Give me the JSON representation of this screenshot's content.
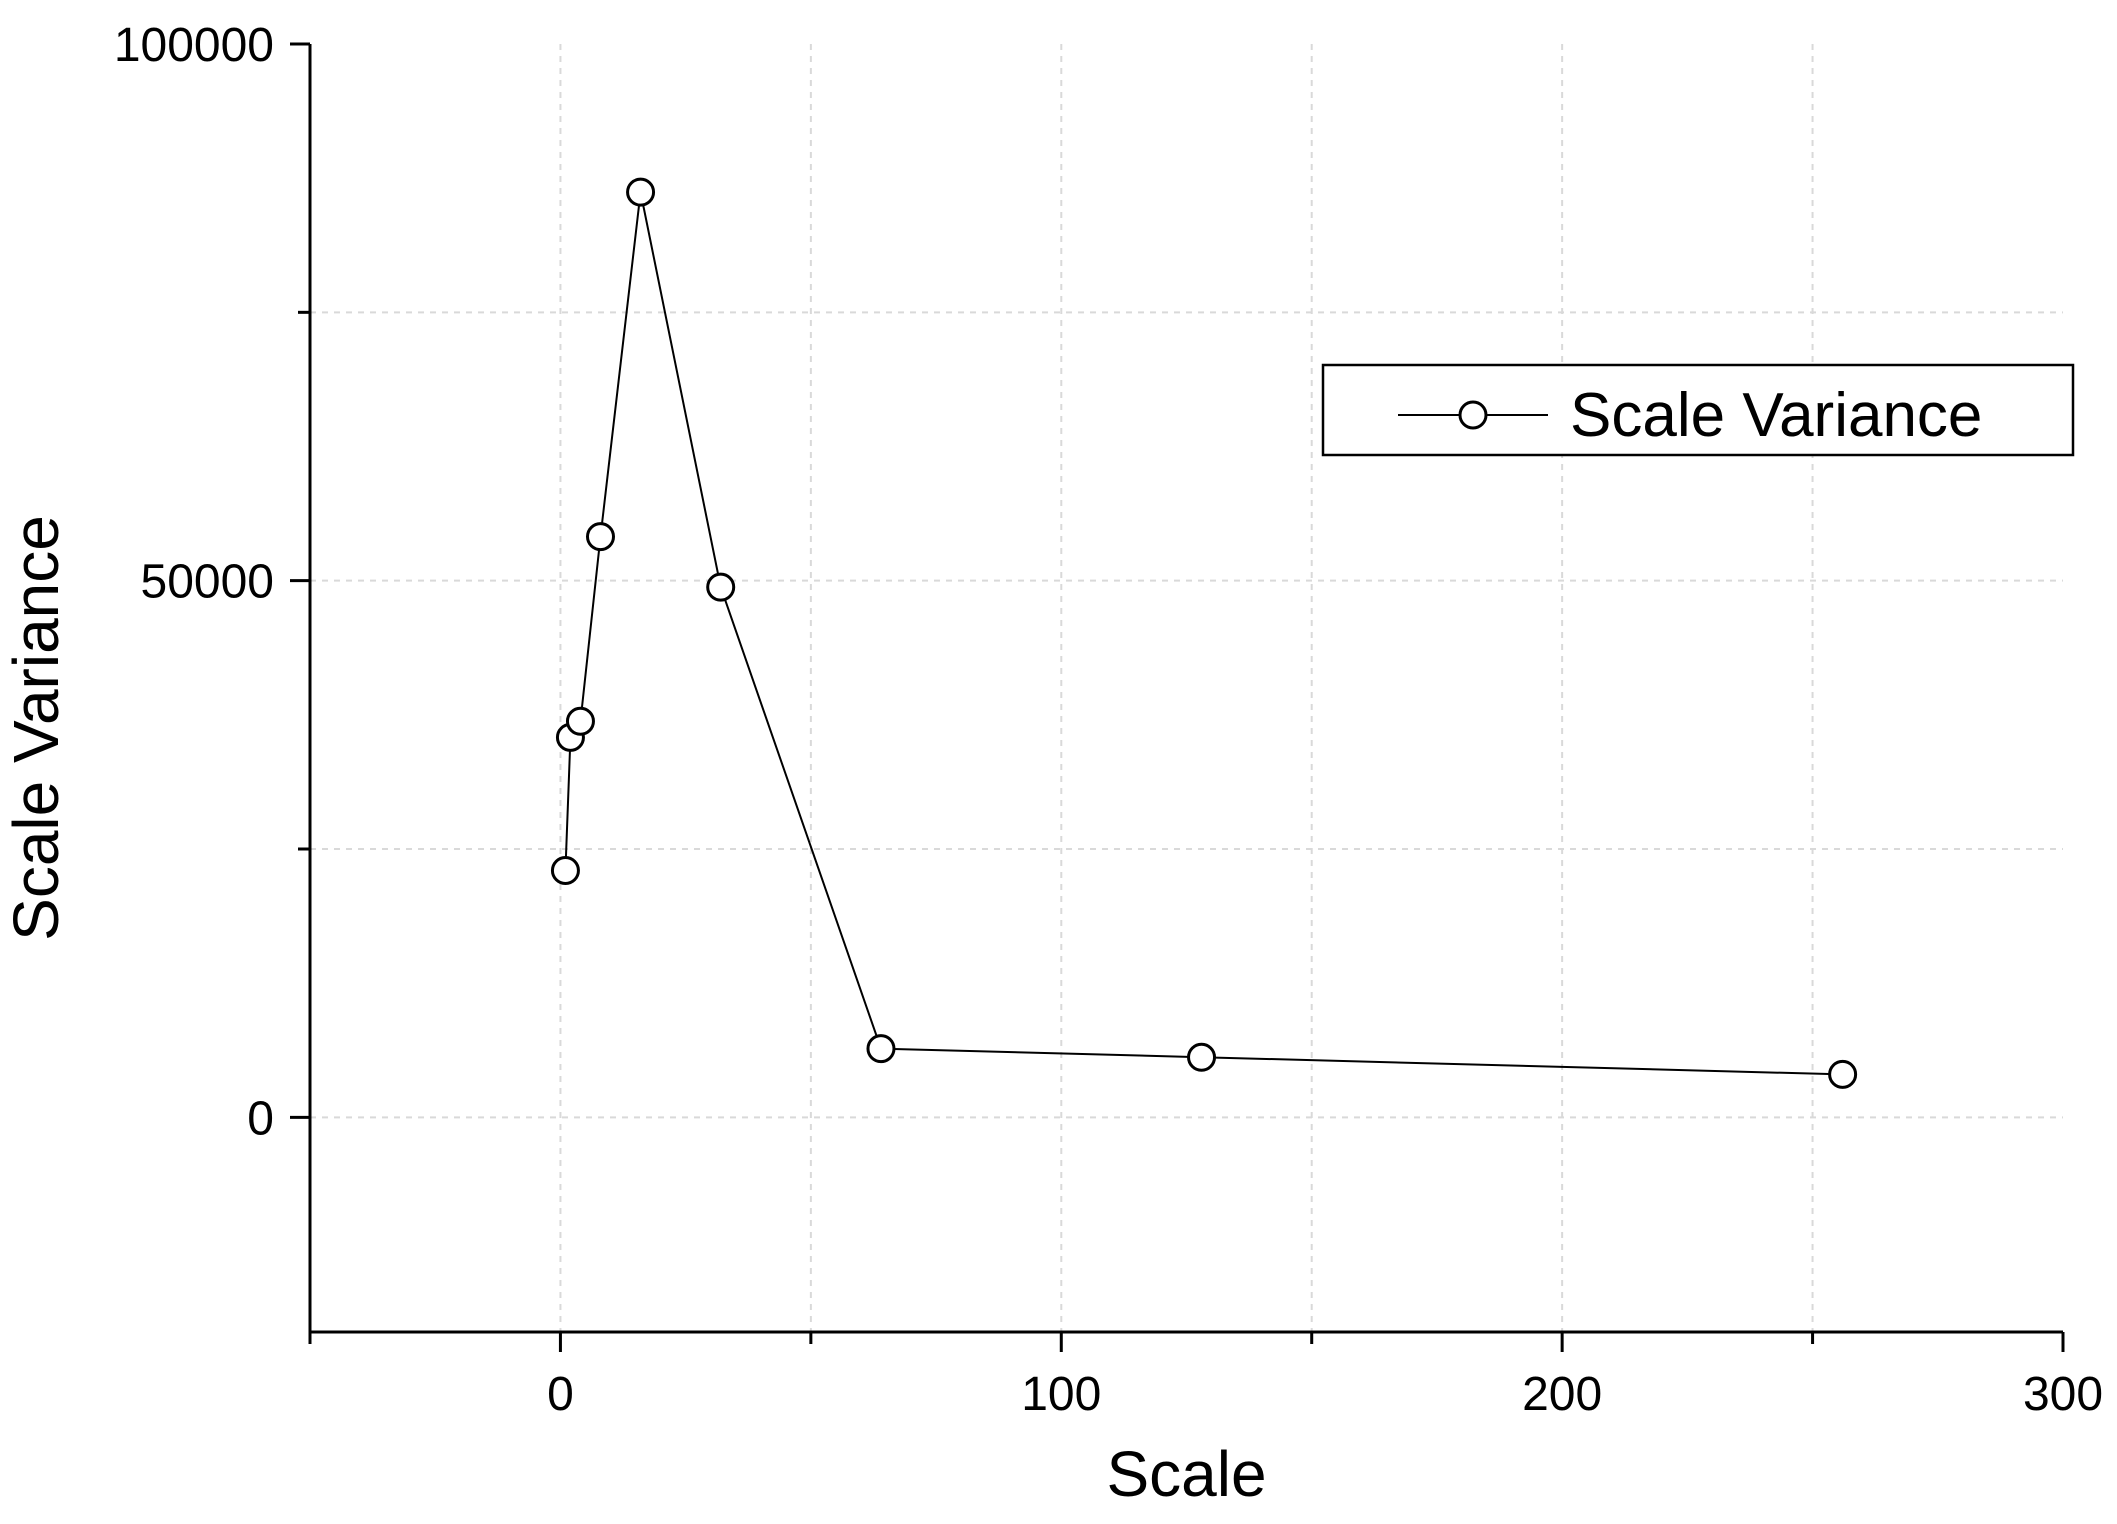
{
  "chart_data": {
    "type": "line",
    "xlabel": "Scale",
    "ylabel": "Scale Variance",
    "xlim": [
      -50,
      300
    ],
    "ylim": [
      -20000,
      100000
    ],
    "x_ticks": [
      0,
      100,
      200,
      300
    ],
    "x_tick_labels": [
      "0",
      "100",
      "200",
      "300"
    ],
    "x_minor_ticks": [
      -50,
      50,
      150,
      250
    ],
    "y_ticks": [
      0,
      50000,
      100000
    ],
    "y_tick_labels": [
      "0",
      "50000",
      "100000"
    ],
    "y_minor_ticks": [
      25000,
      75000
    ],
    "grid": true,
    "legend": {
      "position": "top-right",
      "entries": [
        "Scale Variance"
      ]
    },
    "series": [
      {
        "name": "Scale Variance",
        "color": "#000000",
        "marker": "open-circle",
        "x": [
          1,
          2,
          4,
          8,
          16,
          32,
          64,
          128,
          256
        ],
        "y": [
          23000,
          35400,
          36900,
          54100,
          86200,
          49400,
          6400,
          5600,
          4000
        ]
      }
    ]
  }
}
